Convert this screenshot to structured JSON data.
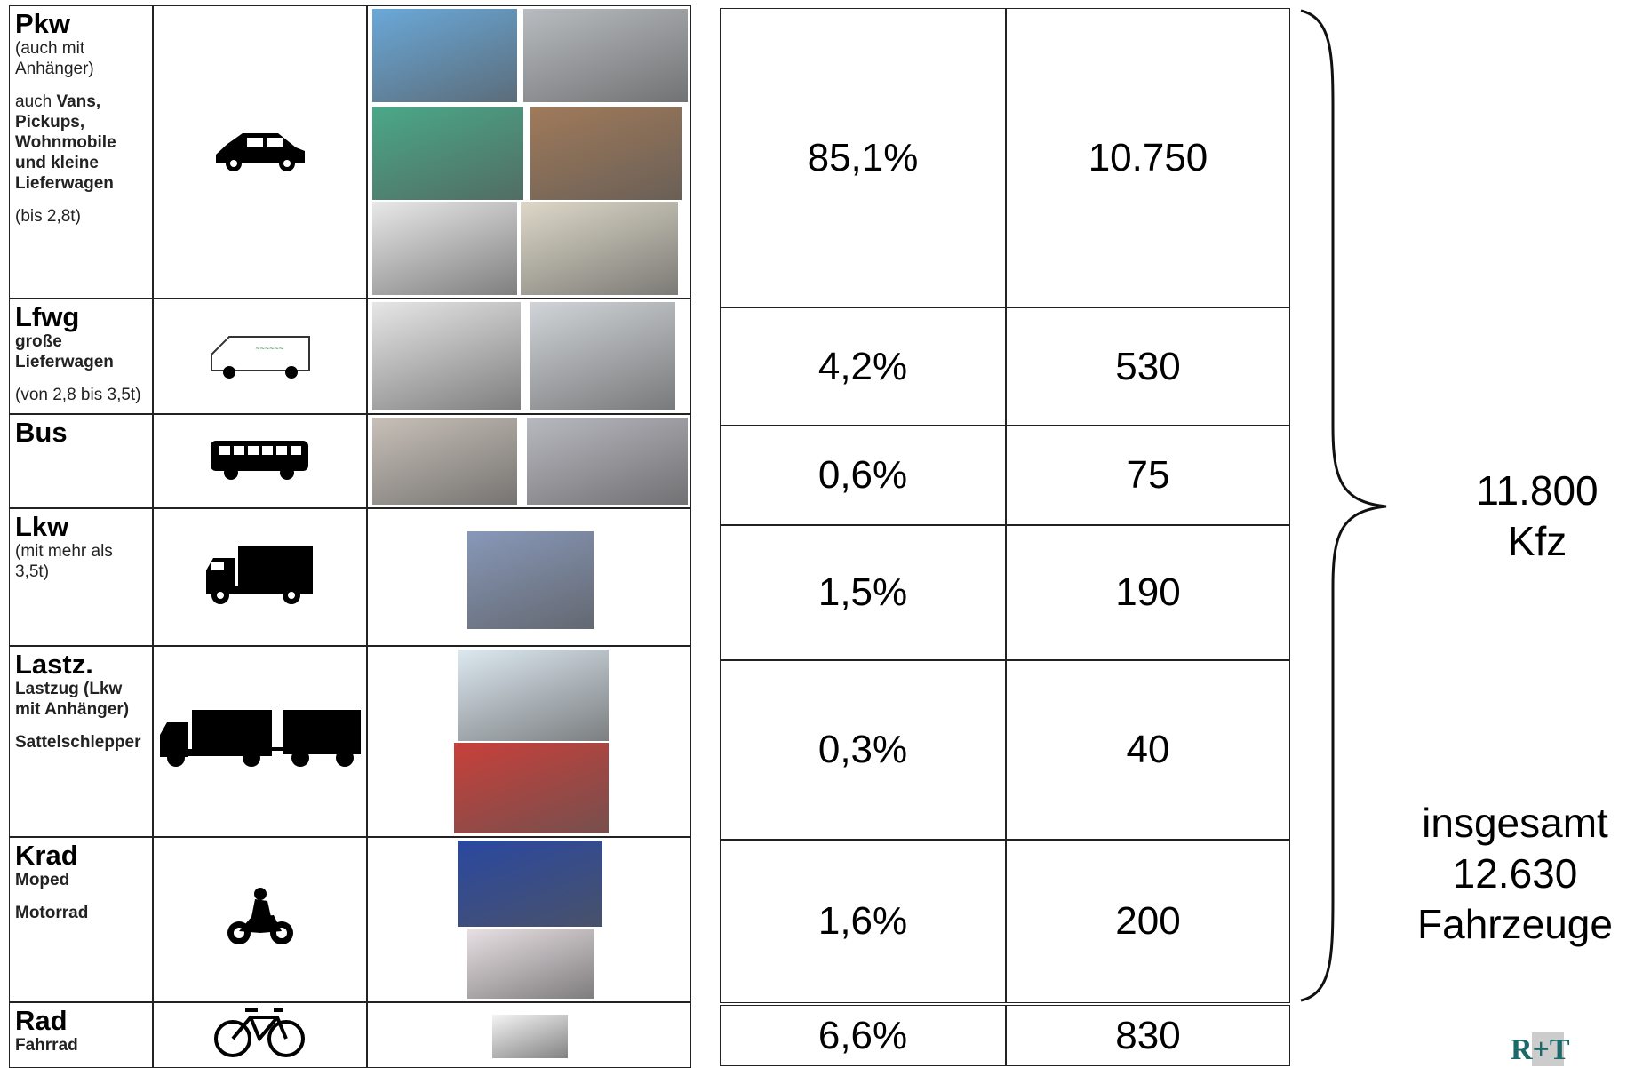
{
  "rows": [
    {
      "name": "Pkw",
      "desc": [
        [
          {
            "text": "(auch mit Anhänger)"
          }
        ],
        [
          {
            "text": "auch "
          },
          {
            "text": "Vans, Pickups, Wohnmobile und kleine Lieferwagen",
            "bold": true
          }
        ],
        [
          {
            "text": "(bis 2,8t)"
          }
        ]
      ],
      "share": "85,1%",
      "count": "10.750"
    },
    {
      "name": "Lfwg",
      "desc": [
        [
          {
            "text": "große Lieferwagen",
            "bold": true
          }
        ],
        [
          {
            "text": "(von 2,8 bis 3,5t)"
          }
        ]
      ],
      "share": "4,2%",
      "count": "530"
    },
    {
      "name": "Bus",
      "desc": [],
      "share": "0,6%",
      "count": "75"
    },
    {
      "name": "Lkw",
      "desc": [
        [
          {
            "text": "(mit mehr als 3,5t)"
          }
        ]
      ],
      "share": "1,5%",
      "count": "190"
    },
    {
      "name": "Lastz.",
      "desc": [
        [
          {
            "text": "Lastzug (Lkw mit Anhänger)",
            "bold": true
          }
        ],
        [
          {
            "text": "Sattelschlepper",
            "bold": true
          }
        ]
      ],
      "share": "0,3%",
      "count": "40"
    },
    {
      "name": "Krad",
      "desc": [
        [
          {
            "text": "Moped",
            "bold": true
          }
        ],
        [
          {
            "text": "Motorrad",
            "bold": true
          }
        ]
      ],
      "share": "1,6%",
      "count": "200"
    },
    {
      "name": "Rad",
      "desc": [
        [
          {
            "text": "Fahrrad",
            "bold": true
          }
        ]
      ],
      "share": "6,6%",
      "count": "830"
    }
  ],
  "motor_total": {
    "value": "11.800",
    "unit": "Kfz"
  },
  "grand_total": {
    "label": "insgesamt",
    "value": "12.630",
    "unit": "Fahrzeuge"
  },
  "logo": "R+T"
}
